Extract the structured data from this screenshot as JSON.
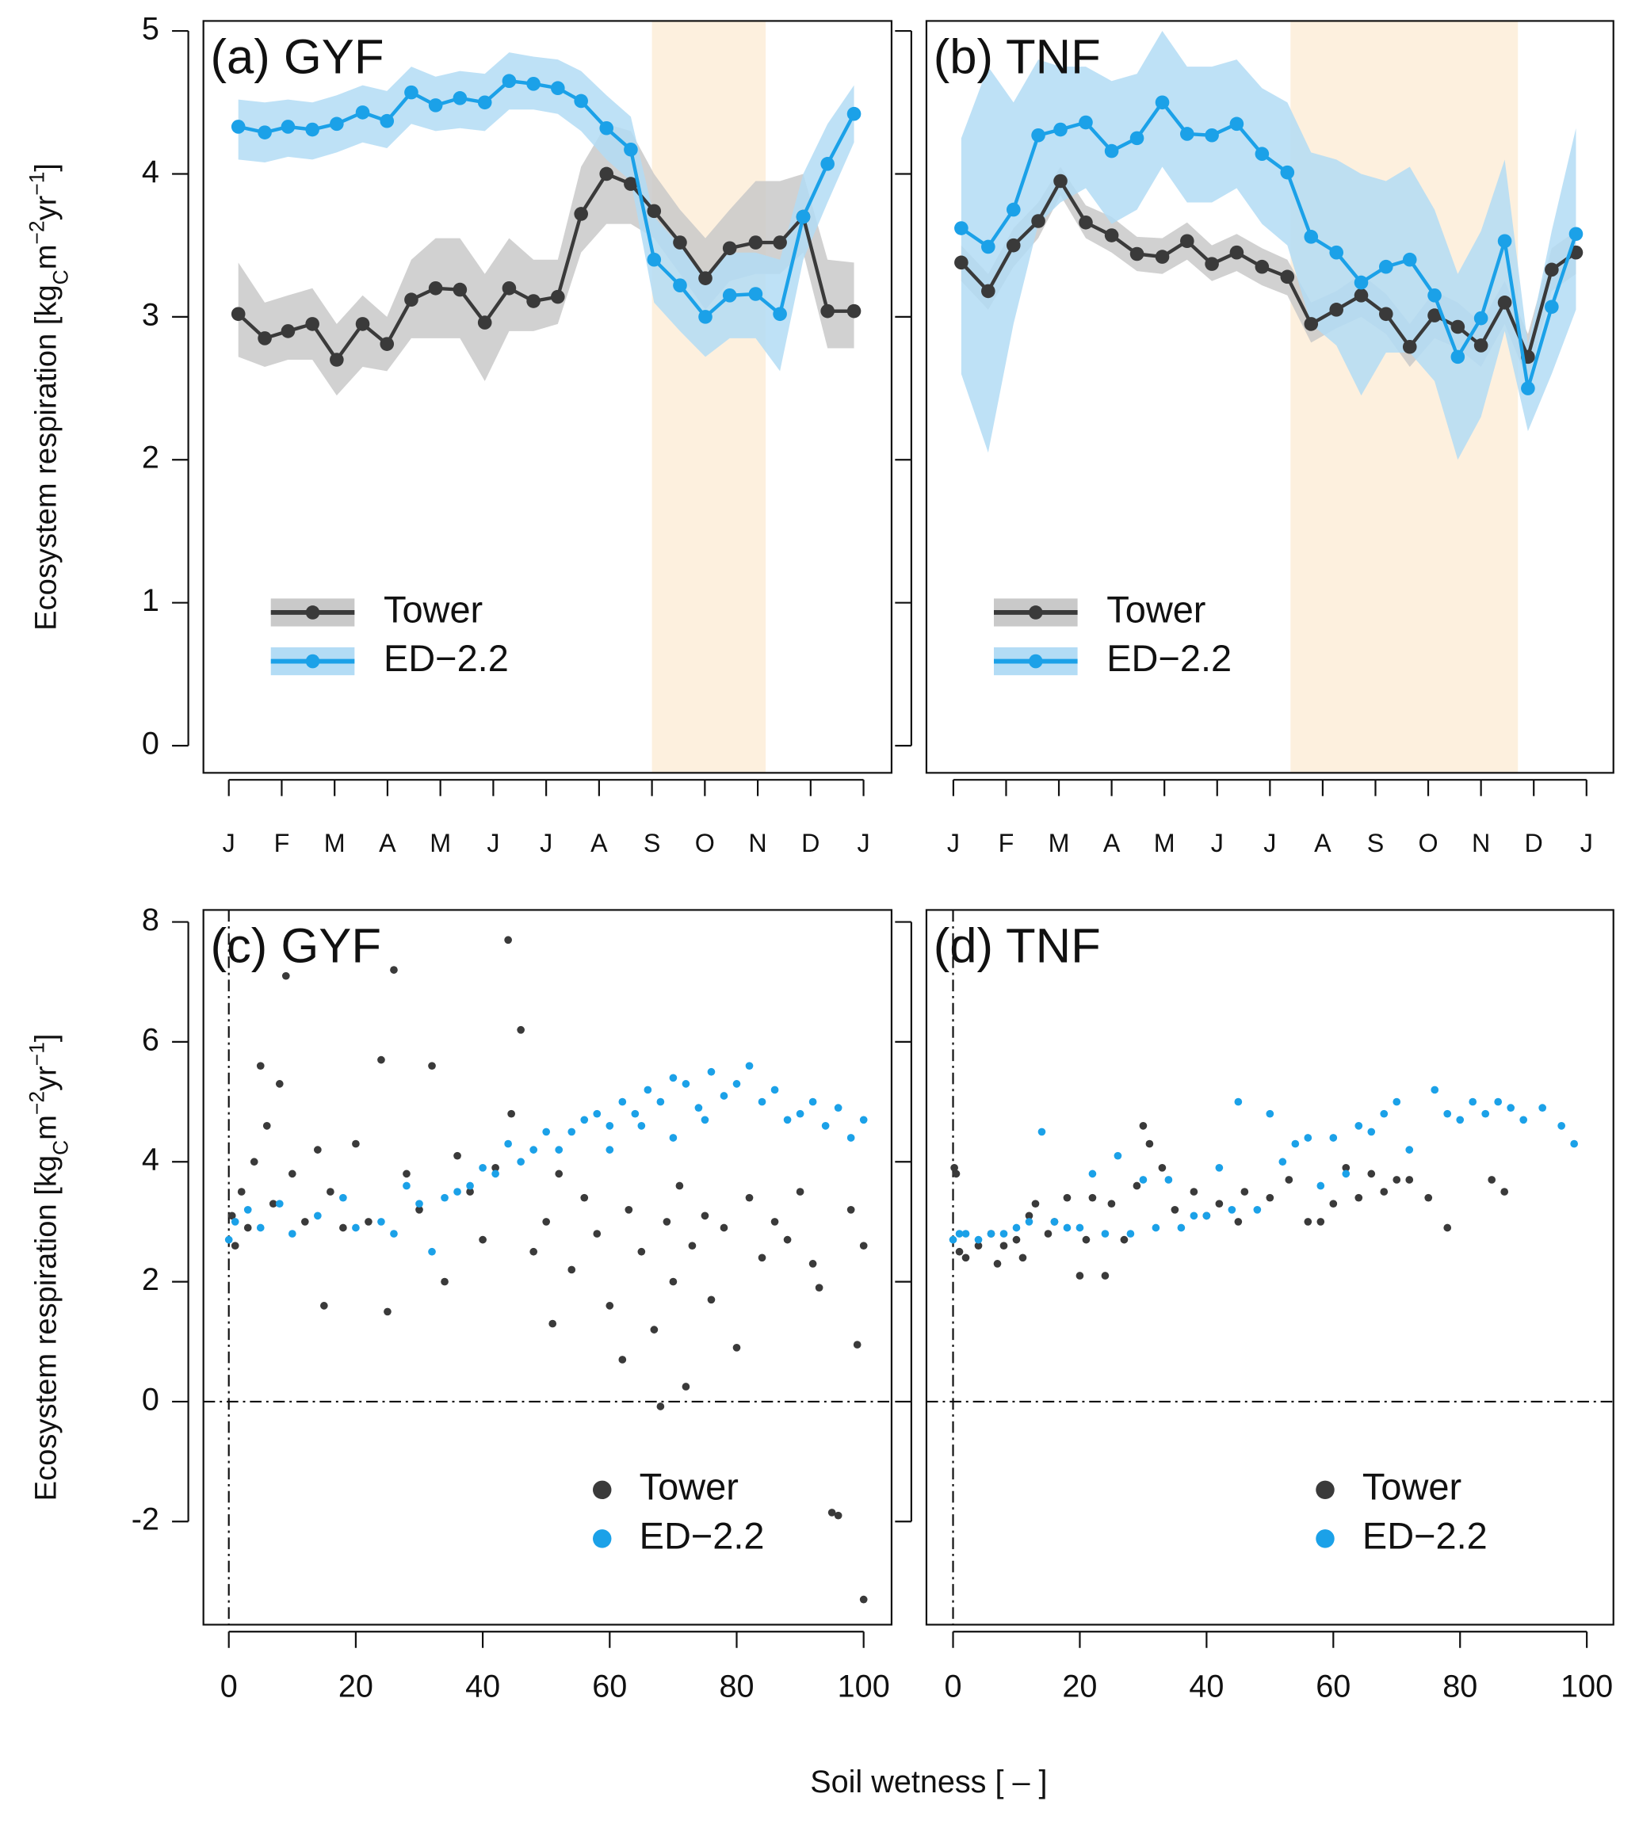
{
  "chart_data": [
    {
      "type": "line",
      "title": "(a) GYF",
      "ylabel": [
        "Ecosystem respiration [kg",
        "C",
        "m",
        "−2",
        "yr",
        "−1",
        "]"
      ],
      "ylabel_shift": [
        "base",
        "sub",
        "base",
        "sup",
        "base",
        "sup",
        "base"
      ],
      "x": [
        0.18,
        0.68,
        1.12,
        1.58,
        2.04,
        2.53,
        2.99,
        3.45,
        3.91,
        4.37,
        4.84,
        5.3,
        5.76,
        6.22,
        6.66,
        7.14,
        7.6,
        8.04,
        8.53,
        9.01,
        9.47,
        9.96,
        10.42,
        10.86,
        11.32,
        11.82
      ],
      "xlim": [
        -0.48,
        12.53
      ],
      "ylim": [
        -0.19,
        5.07
      ],
      "xticks": [
        {
          "value": 0,
          "label": "J"
        },
        {
          "value": 1,
          "label": "F"
        },
        {
          "value": 2,
          "label": "M"
        },
        {
          "value": 3,
          "label": "A"
        },
        {
          "value": 4,
          "label": "M"
        },
        {
          "value": 5,
          "label": "J"
        },
        {
          "value": 6,
          "label": "J"
        },
        {
          "value": 7,
          "label": "A"
        },
        {
          "value": 8,
          "label": "S"
        },
        {
          "value": 9,
          "label": "O"
        },
        {
          "value": 10,
          "label": "N"
        },
        {
          "value": 11,
          "label": "D"
        },
        {
          "value": 12,
          "label": "J"
        }
      ],
      "yticks": [
        0,
        1,
        2,
        3,
        4,
        5
      ],
      "ytick_labels": true,
      "shade_xlim": [
        8.0,
        10.15
      ],
      "shade_color": "#fdf0de",
      "legend": "bottomleft",
      "series": [
        {
          "name": "Tower",
          "color": "#3a3a3a",
          "band_color": "#c9c9c9",
          "values": [
            3.02,
            2.85,
            2.9,
            2.95,
            2.7,
            2.95,
            2.81,
            3.12,
            3.2,
            3.19,
            2.96,
            3.2,
            3.11,
            3.14,
            3.72,
            4.0,
            3.93,
            3.74,
            3.52,
            3.27,
            3.48,
            3.52,
            3.52,
            3.7,
            3.04,
            3.04
          ],
          "band_lower": [
            2.72,
            2.65,
            2.7,
            2.7,
            2.45,
            2.65,
            2.62,
            2.85,
            2.85,
            2.85,
            2.55,
            2.9,
            2.9,
            2.95,
            3.45,
            3.65,
            3.65,
            3.55,
            3.3,
            3.05,
            3.25,
            3.3,
            3.3,
            3.45,
            2.78,
            2.78
          ],
          "band_upper": [
            3.38,
            3.1,
            3.15,
            3.2,
            2.95,
            3.15,
            3.0,
            3.4,
            3.55,
            3.55,
            3.3,
            3.55,
            3.4,
            3.4,
            4.05,
            4.35,
            4.3,
            4.0,
            3.75,
            3.55,
            3.75,
            3.95,
            3.95,
            4.0,
            3.4,
            3.38
          ]
        },
        {
          "name": "ED−2.2",
          "color": "#1ba1e8",
          "band_color": "#b3dcf5",
          "values": [
            4.33,
            4.29,
            4.33,
            4.31,
            4.35,
            4.43,
            4.37,
            4.57,
            4.48,
            4.53,
            4.5,
            4.65,
            4.63,
            4.6,
            4.51,
            4.32,
            4.17,
            3.4,
            3.22,
            3.0,
            3.15,
            3.16,
            3.02,
            3.7,
            4.07,
            4.42
          ],
          "band_lower": [
            4.1,
            4.08,
            4.12,
            4.1,
            4.15,
            4.22,
            4.18,
            4.35,
            4.3,
            4.32,
            4.3,
            4.45,
            4.45,
            4.42,
            4.3,
            4.1,
            3.95,
            3.1,
            2.9,
            2.72,
            2.85,
            2.85,
            2.62,
            3.4,
            3.8,
            4.22
          ],
          "band_upper": [
            4.52,
            4.5,
            4.52,
            4.5,
            4.55,
            4.62,
            4.58,
            4.75,
            4.68,
            4.72,
            4.7,
            4.85,
            4.82,
            4.8,
            4.72,
            4.55,
            4.4,
            3.7,
            3.5,
            3.3,
            3.45,
            3.45,
            3.4,
            4.0,
            4.35,
            4.62
          ]
        }
      ]
    },
    {
      "type": "line",
      "title": "(b) TNF",
      "x": [
        0.15,
        0.66,
        1.14,
        1.61,
        2.03,
        2.51,
        3.0,
        3.48,
        3.96,
        4.43,
        4.9,
        5.37,
        5.85,
        6.33,
        6.78,
        7.26,
        7.73,
        8.2,
        8.65,
        9.12,
        9.56,
        10.0,
        10.45,
        10.89,
        11.34,
        11.8
      ],
      "xlim": [
        -0.51,
        12.51
      ],
      "ylim": [
        -0.19,
        5.07
      ],
      "xticks": [
        {
          "value": 0,
          "label": "J"
        },
        {
          "value": 1,
          "label": "F"
        },
        {
          "value": 2,
          "label": "M"
        },
        {
          "value": 3,
          "label": "A"
        },
        {
          "value": 4,
          "label": "M"
        },
        {
          "value": 5,
          "label": "J"
        },
        {
          "value": 6,
          "label": "J"
        },
        {
          "value": 7,
          "label": "A"
        },
        {
          "value": 8,
          "label": "S"
        },
        {
          "value": 9,
          "label": "O"
        },
        {
          "value": 10,
          "label": "N"
        },
        {
          "value": 11,
          "label": "D"
        },
        {
          "value": 12,
          "label": "J"
        }
      ],
      "yticks": [
        0,
        1,
        2,
        3,
        4,
        5
      ],
      "ytick_labels": false,
      "shade_xlim": [
        6.39,
        10.7
      ],
      "shade_color": "#fdf0de",
      "legend": "bottomleft",
      "series": [
        {
          "name": "Tower",
          "color": "#3a3a3a",
          "band_color": "#c9c9c9",
          "values": [
            3.38,
            3.18,
            3.5,
            3.67,
            3.95,
            3.66,
            3.57,
            3.44,
            3.42,
            3.53,
            3.37,
            3.45,
            3.35,
            3.28,
            2.95,
            3.05,
            3.15,
            3.02,
            2.79,
            3.01,
            2.93,
            2.8,
            3.1,
            2.72,
            3.33,
            3.45
          ],
          "band_lower": [
            3.25,
            3.05,
            3.35,
            3.55,
            3.85,
            3.55,
            3.45,
            3.32,
            3.3,
            3.4,
            3.25,
            3.32,
            3.22,
            3.15,
            2.82,
            2.92,
            3.0,
            2.88,
            2.65,
            2.85,
            2.78,
            2.65,
            2.95,
            2.55,
            3.18,
            3.3
          ],
          "band_upper": [
            3.5,
            3.3,
            3.62,
            3.8,
            4.05,
            3.78,
            3.7,
            3.56,
            3.55,
            3.66,
            3.5,
            3.58,
            3.48,
            3.4,
            3.1,
            3.18,
            3.3,
            3.16,
            2.95,
            3.18,
            3.1,
            2.96,
            3.25,
            2.88,
            3.48,
            3.6
          ]
        },
        {
          "name": "ED−2.2",
          "color": "#1ba1e8",
          "band_color": "#b3dcf5",
          "values": [
            3.62,
            3.49,
            3.75,
            4.27,
            4.31,
            4.36,
            4.16,
            4.25,
            4.5,
            4.28,
            4.27,
            4.35,
            4.14,
            4.01,
            3.56,
            3.45,
            3.24,
            3.35,
            3.4,
            3.15,
            2.72,
            2.99,
            3.53,
            2.5,
            3.07,
            3.58
          ],
          "band_lower": [
            2.6,
            2.05,
            2.95,
            3.65,
            3.8,
            3.9,
            3.65,
            3.75,
            4.05,
            3.8,
            3.8,
            3.9,
            3.65,
            3.5,
            2.95,
            2.8,
            2.45,
            2.75,
            2.75,
            2.55,
            2.0,
            2.3,
            2.9,
            2.2,
            2.6,
            3.05
          ],
          "band_upper": [
            4.25,
            4.75,
            4.5,
            4.8,
            4.75,
            4.75,
            4.65,
            4.7,
            5.0,
            4.75,
            4.75,
            4.8,
            4.6,
            4.5,
            4.15,
            4.1,
            4.0,
            3.95,
            4.05,
            3.75,
            3.3,
            3.6,
            4.1,
            2.8,
            3.6,
            4.32
          ]
        }
      ]
    },
    {
      "type": "scatter",
      "title": "(c) GYF",
      "ylabel": [
        "Ecosystem respiration [kg",
        "C",
        "m",
        "−2",
        "yr",
        "−1",
        "]"
      ],
      "ylabel_shift": [
        "base",
        "sub",
        "base",
        "sup",
        "base",
        "sup",
        "base"
      ],
      "xlabel": "Soil wetness [  –  ]",
      "xlim": [
        -4,
        104.4
      ],
      "ylim": [
        -3.72,
        8.2
      ],
      "xticks": [
        0,
        20,
        40,
        60,
        80,
        100
      ],
      "yticks": [
        -2,
        0,
        2,
        4,
        6,
        8
      ],
      "ytick_labels": true,
      "hline": 0,
      "vline": 0,
      "legend": "bottom",
      "series": [
        {
          "name": "Tower",
          "color": "#3a3a3a",
          "x": [
            0.5,
            1,
            2,
            3,
            4,
            5,
            6,
            7,
            8,
            9,
            10,
            12,
            14,
            15,
            16,
            18,
            20,
            22,
            24,
            25,
            26,
            28,
            30,
            32,
            34,
            36,
            38,
            40,
            42,
            44,
            44.5,
            46,
            48,
            50,
            51,
            52,
            54,
            56,
            58,
            60,
            62,
            63,
            65,
            67,
            68,
            69,
            70,
            71,
            72,
            73,
            75,
            76,
            78,
            80,
            82,
            84,
            86,
            88,
            90,
            92,
            93,
            95,
            96,
            98,
            99,
            100,
            100
          ],
          "values": [
            3.1,
            2.6,
            3.5,
            2.9,
            4.0,
            5.6,
            4.6,
            3.3,
            5.3,
            7.1,
            3.8,
            3.0,
            4.2,
            1.6,
            3.5,
            2.9,
            4.3,
            3.0,
            5.7,
            1.5,
            7.2,
            3.8,
            3.2,
            5.6,
            2.0,
            4.1,
            3.5,
            2.7,
            3.9,
            7.7,
            4.8,
            6.2,
            2.5,
            3.0,
            1.3,
            3.8,
            2.2,
            3.4,
            2.8,
            1.6,
            0.7,
            3.2,
            2.5,
            1.2,
            -0.08,
            3.0,
            2.0,
            3.6,
            0.25,
            2.6,
            3.1,
            1.7,
            2.9,
            0.9,
            3.4,
            2.4,
            3.0,
            2.7,
            3.5,
            2.3,
            1.9,
            -1.85,
            -1.9,
            3.2,
            0.95,
            -3.3,
            2.6
          ]
        },
        {
          "name": "ED−2.2",
          "color": "#1ba1e8",
          "x": [
            0,
            1,
            3,
            5,
            8,
            10,
            14,
            18,
            20,
            24,
            26,
            28,
            30,
            32,
            34,
            36,
            38,
            40,
            42,
            44,
            46,
            48,
            50,
            52,
            54,
            56,
            58,
            60,
            62,
            64,
            66,
            68,
            70,
            72,
            74,
            76,
            78,
            80,
            82,
            84,
            86,
            88,
            90,
            92,
            94,
            96,
            98,
            100,
            60,
            65,
            70,
            75
          ],
          "values": [
            2.7,
            3.0,
            3.2,
            2.9,
            3.3,
            2.8,
            3.1,
            3.4,
            2.9,
            3.0,
            2.8,
            3.6,
            3.3,
            2.5,
            3.4,
            3.5,
            3.6,
            3.9,
            3.8,
            4.3,
            4.0,
            4.2,
            4.5,
            4.2,
            4.5,
            4.7,
            4.8,
            4.6,
            5.0,
            4.8,
            5.2,
            5.0,
            5.4,
            5.3,
            4.9,
            5.5,
            5.1,
            5.3,
            5.6,
            5.0,
            5.2,
            4.7,
            4.8,
            5.0,
            4.6,
            4.9,
            4.4,
            4.7,
            4.2,
            4.6,
            4.4,
            4.7
          ]
        }
      ]
    },
    {
      "type": "scatter",
      "title": "(d) TNF",
      "xlim": [
        -4.2,
        104.2
      ],
      "ylim": [
        -3.72,
        8.2
      ],
      "xticks": [
        0,
        20,
        40,
        60,
        80,
        100
      ],
      "yticks": [
        -2,
        0,
        2,
        4,
        6,
        8
      ],
      "ytick_labels": false,
      "hline": 0,
      "vline": 0,
      "legend": "bottom",
      "series": [
        {
          "name": "Tower",
          "color": "#3a3a3a",
          "x": [
            0.2,
            0.5,
            1,
            2,
            4,
            6,
            7,
            8,
            10,
            11,
            12,
            13,
            15,
            16,
            18,
            20,
            21,
            22,
            24,
            25,
            27,
            29,
            30,
            31,
            33,
            35,
            38,
            40,
            42,
            45,
            46,
            50,
            53,
            56,
            58,
            60,
            62,
            64,
            66,
            68,
            70,
            72,
            75,
            78,
            85,
            87
          ],
          "values": [
            3.9,
            3.8,
            2.5,
            2.4,
            2.6,
            2.8,
            2.3,
            2.6,
            2.7,
            2.4,
            3.1,
            3.3,
            2.8,
            3.0,
            3.4,
            2.1,
            2.7,
            3.4,
            2.1,
            3.3,
            2.7,
            3.6,
            4.6,
            4.3,
            3.9,
            3.2,
            3.5,
            3.1,
            3.3,
            3.0,
            3.5,
            3.4,
            3.7,
            3.0,
            3.0,
            3.3,
            3.9,
            3.4,
            3.8,
            3.5,
            3.7,
            3.7,
            3.4,
            2.9,
            3.7,
            3.5
          ]
        },
        {
          "name": "ED−2.2",
          "color": "#1ba1e8",
          "x": [
            0,
            1,
            2,
            4,
            6,
            8,
            10,
            12,
            14,
            16,
            18,
            20,
            22,
            24,
            26,
            28,
            30,
            32,
            34,
            36,
            38,
            40,
            42,
            44,
            45,
            48,
            50,
            52,
            54,
            56,
            58,
            60,
            62,
            64,
            66,
            68,
            70,
            72,
            76,
            78,
            80,
            82,
            84,
            86,
            88,
            90,
            93,
            96,
            98
          ],
          "values": [
            2.7,
            2.8,
            2.8,
            2.7,
            2.8,
            2.8,
            2.9,
            3.0,
            4.5,
            3.0,
            2.9,
            2.9,
            3.8,
            2.8,
            4.1,
            2.8,
            3.7,
            2.9,
            3.7,
            2.9,
            3.1,
            3.1,
            3.9,
            3.2,
            5.0,
            3.2,
            4.8,
            4.0,
            4.3,
            4.4,
            3.6,
            4.4,
            3.8,
            4.6,
            4.5,
            4.8,
            5.0,
            4.2,
            5.2,
            4.8,
            4.7,
            5.0,
            4.8,
            5.0,
            4.9,
            4.7,
            4.9,
            4.6,
            4.3
          ]
        }
      ]
    }
  ]
}
